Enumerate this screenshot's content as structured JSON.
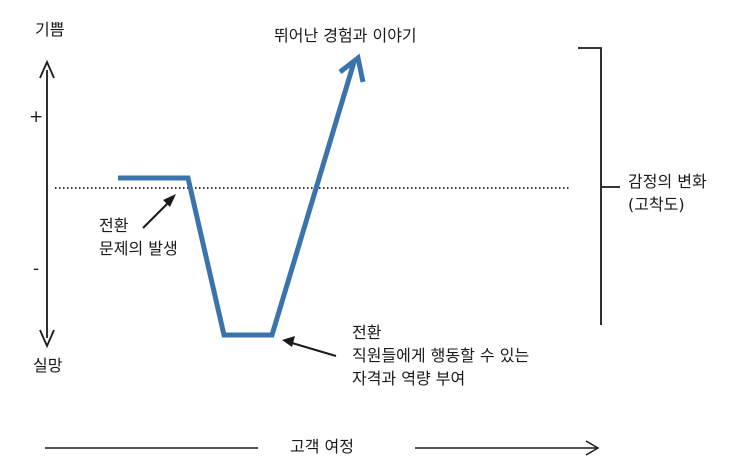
{
  "axis": {
    "top_label": "기쁨",
    "bottom_label": "실망",
    "plus": "+",
    "minus": "-"
  },
  "curve": {
    "color": "#3b73ad",
    "peak_label": "뛰어난 경험과 이야기"
  },
  "annotations": {
    "first": {
      "line1": "전환",
      "line2": "문제의 발생"
    },
    "second": {
      "line1": "전환",
      "line2": "직원들에게 행동할 수 있는",
      "line3": "자격과 역량 부여"
    }
  },
  "bracket": {
    "line1": "감정의 변화",
    "line2": "(고착도)"
  },
  "journey": {
    "label": "고객 여정"
  }
}
